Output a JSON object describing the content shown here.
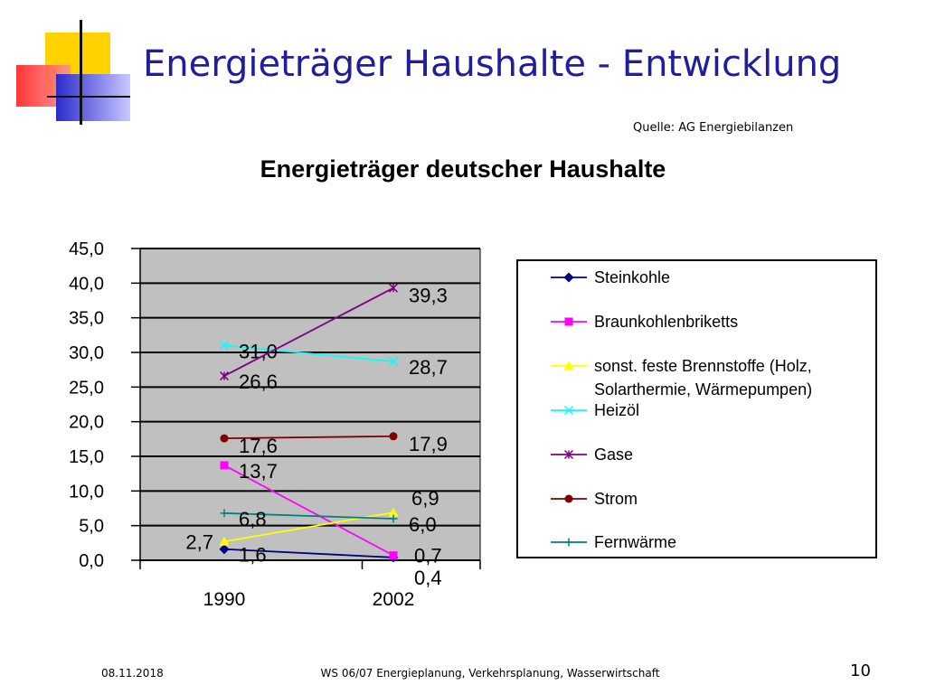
{
  "slide": {
    "title": "Energieträger Haushalte - Entwicklung",
    "source": "Quelle: AG Energiebilanzen",
    "footer_date": "08.11.2018",
    "footer_text": "WS 06/07 Energieplanung, Verkehrsplanung, Wasserwirtschaft",
    "page_number": "10"
  },
  "colors": {
    "title": "#1f1f9e",
    "plot_background": "#c0c0c0",
    "deco_yellow": "#ffd200",
    "deco_red": "#ff3030",
    "deco_blue": "#3434d0"
  },
  "chart_data": {
    "type": "line",
    "title": "Energieträger deutscher Haushalte",
    "xlabel": "",
    "ylabel": "",
    "categories": [
      "1990",
      "2002"
    ],
    "ylim": [
      0,
      45
    ],
    "yticks": [
      "0,0",
      "5,0",
      "10,0",
      "15,0",
      "20,0",
      "25,0",
      "30,0",
      "35,0",
      "40,0",
      "45,0"
    ],
    "grid": true,
    "legend": "right",
    "series": [
      {
        "name": "Steinkohle",
        "values": [
          1.6,
          0.4
        ],
        "labels": [
          "1,6",
          "0,4"
        ],
        "color": "#000080",
        "marker": "diamond"
      },
      {
        "name": "Braunkohlenbriketts",
        "values": [
          13.7,
          0.7
        ],
        "labels": [
          "13,7",
          "0,7"
        ],
        "color": "#ff00ff",
        "marker": "square"
      },
      {
        "name": "sonst. feste Brennstoffe (Holz, Solarthermie, Wärmepumpen)",
        "name_lines": [
          "sonst. feste Brennstoffe (Holz,",
          "Solarthermie, Wärmepumpen)"
        ],
        "values": [
          2.7,
          6.9
        ],
        "labels": [
          "2,7",
          "6,9"
        ],
        "color": "#ffff00",
        "marker": "triangle"
      },
      {
        "name": "Heizöl",
        "values": [
          31.0,
          28.7
        ],
        "labels": [
          "31,0",
          "28,7"
        ],
        "color": "#00ffff",
        "marker": "x"
      },
      {
        "name": "Gase",
        "values": [
          26.6,
          39.3
        ],
        "labels": [
          "26,6",
          "39,3"
        ],
        "color": "#800080",
        "marker": "star"
      },
      {
        "name": "Strom",
        "values": [
          17.6,
          17.9
        ],
        "labels": [
          "17,6",
          "17,9"
        ],
        "color": "#800000",
        "marker": "circle"
      },
      {
        "name": "Fernwärme",
        "values": [
          6.8,
          6.0
        ],
        "labels": [
          "6,8",
          "6,0"
        ],
        "color": "#008080",
        "marker": "plus"
      }
    ]
  }
}
